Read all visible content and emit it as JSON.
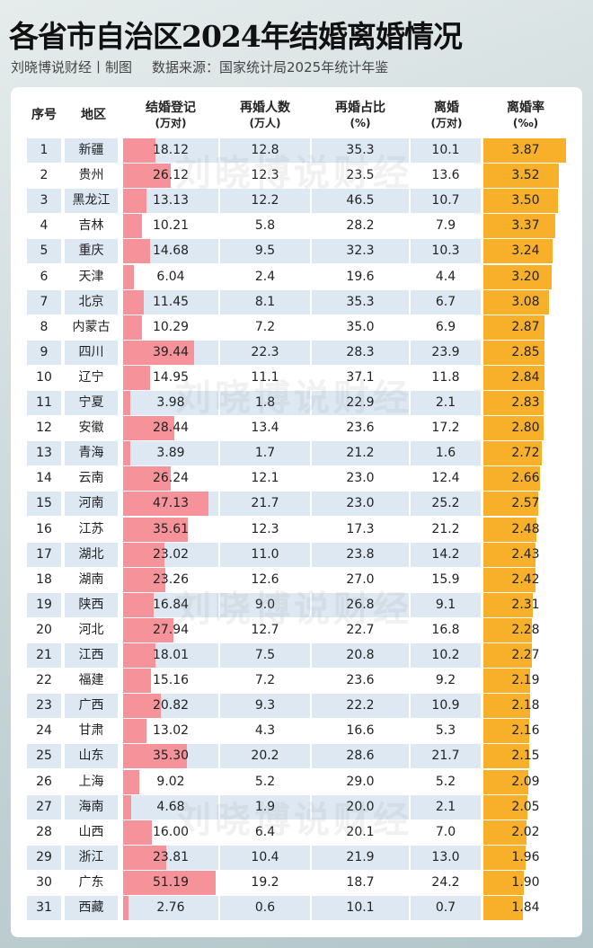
{
  "title": "各省市自治区2024年结婚离婚情况",
  "author": "刘晓博说财经丨制图",
  "source": "数据来源：国家统计局2025年统计年鉴",
  "watermark": "刘晓博说财经",
  "headers": {
    "seq": "序号",
    "region": "地区",
    "marriage": "结婚登记",
    "marriage_unit": "(万对)",
    "remarry": "再婚人数",
    "remarry_unit": "(万人)",
    "ratio": "再婚占比",
    "ratio_unit": "(%)",
    "divorce": "离婚",
    "divorce_unit": "(万对)",
    "rate": "离婚率",
    "rate_unit": "(‰)"
  },
  "colors": {
    "marriage_bar": "#f5929a",
    "rate_bar": "#f8b02a",
    "stripe": "#dde8f3"
  },
  "rows": [
    [
      "1",
      "新疆",
      "18.12",
      "12.8",
      "35.3",
      "10.1",
      "3.87"
    ],
    [
      "2",
      "贵州",
      "26.12",
      "12.3",
      "23.5",
      "13.6",
      "3.52"
    ],
    [
      "3",
      "黑龙江",
      "13.13",
      "12.2",
      "46.5",
      "10.7",
      "3.50"
    ],
    [
      "4",
      "吉林",
      "10.21",
      "5.8",
      "28.2",
      "7.9",
      "3.37"
    ],
    [
      "5",
      "重庆",
      "14.68",
      "9.5",
      "32.3",
      "10.3",
      "3.24"
    ],
    [
      "6",
      "天津",
      "6.04",
      "2.4",
      "19.6",
      "4.4",
      "3.20"
    ],
    [
      "7",
      "北京",
      "11.45",
      "8.1",
      "35.3",
      "6.7",
      "3.08"
    ],
    [
      "8",
      "内蒙古",
      "10.29",
      "7.2",
      "35.0",
      "6.9",
      "2.87"
    ],
    [
      "9",
      "四川",
      "39.44",
      "22.3",
      "28.3",
      "23.9",
      "2.85"
    ],
    [
      "10",
      "辽宁",
      "14.95",
      "11.1",
      "37.1",
      "11.8",
      "2.84"
    ],
    [
      "11",
      "宁夏",
      "3.98",
      "1.8",
      "22.9",
      "2.1",
      "2.83"
    ],
    [
      "12",
      "安徽",
      "28.44",
      "13.4",
      "23.6",
      "17.2",
      "2.80"
    ],
    [
      "13",
      "青海",
      "3.89",
      "1.7",
      "21.2",
      "1.6",
      "2.72"
    ],
    [
      "14",
      "云南",
      "26.24",
      "12.1",
      "23.0",
      "12.4",
      "2.66"
    ],
    [
      "15",
      "河南",
      "47.13",
      "21.7",
      "23.0",
      "25.2",
      "2.57"
    ],
    [
      "16",
      "江苏",
      "35.61",
      "12.3",
      "17.3",
      "21.2",
      "2.48"
    ],
    [
      "17",
      "湖北",
      "23.02",
      "11.0",
      "23.8",
      "14.2",
      "2.43"
    ],
    [
      "18",
      "湖南",
      "23.26",
      "12.6",
      "27.0",
      "15.9",
      "2.42"
    ],
    [
      "19",
      "陕西",
      "16.84",
      "9.0",
      "26.8",
      "9.1",
      "2.31"
    ],
    [
      "20",
      "河北",
      "27.94",
      "12.7",
      "22.7",
      "16.8",
      "2.28"
    ],
    [
      "21",
      "江西",
      "18.01",
      "7.5",
      "20.8",
      "10.2",
      "2.27"
    ],
    [
      "22",
      "福建",
      "15.16",
      "7.2",
      "23.6",
      "9.2",
      "2.19"
    ],
    [
      "23",
      "广西",
      "20.82",
      "9.3",
      "22.2",
      "10.9",
      "2.18"
    ],
    [
      "24",
      "甘肃",
      "13.02",
      "4.3",
      "16.6",
      "5.3",
      "2.16"
    ],
    [
      "25",
      "山东",
      "35.30",
      "20.2",
      "28.6",
      "21.7",
      "2.15"
    ],
    [
      "26",
      "上海",
      "9.02",
      "5.2",
      "29.0",
      "5.2",
      "2.09"
    ],
    [
      "27",
      "海南",
      "4.68",
      "1.9",
      "20.0",
      "2.1",
      "2.05"
    ],
    [
      "28",
      "山西",
      "16.00",
      "6.4",
      "20.1",
      "7.0",
      "2.02"
    ],
    [
      "29",
      "浙江",
      "23.81",
      "10.4",
      "21.9",
      "13.0",
      "1.96"
    ],
    [
      "30",
      "广东",
      "51.19",
      "19.2",
      "18.7",
      "24.2",
      "1.90"
    ],
    [
      "31",
      "西藏",
      "2.76",
      "0.6",
      "10.1",
      "0.7",
      "1.84"
    ]
  ]
}
